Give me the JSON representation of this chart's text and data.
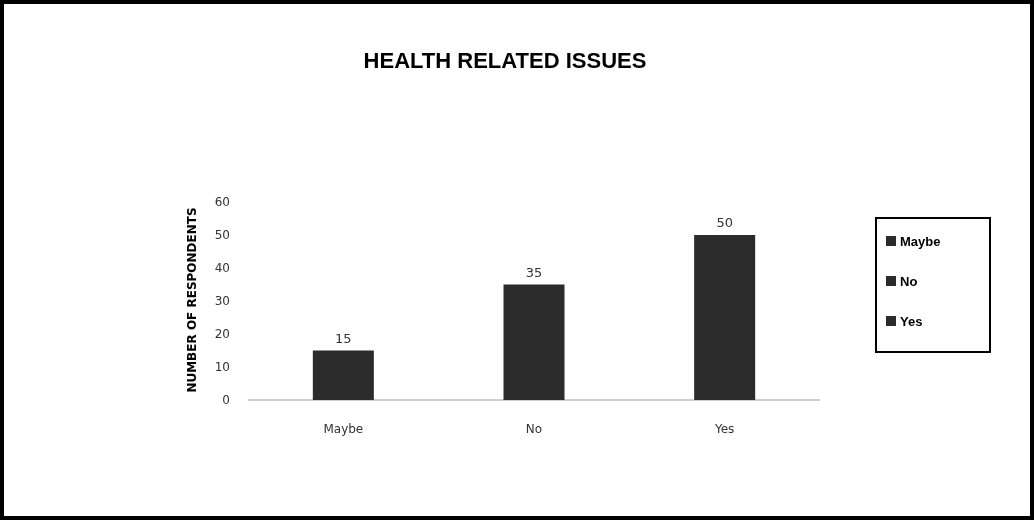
{
  "chart_data": {
    "type": "bar",
    "title": "HEALTH RELATED ISSUES",
    "ylabel": "NUMBER OF RESPONDENTS",
    "categories": [
      "Maybe",
      "No",
      "Yes"
    ],
    "series": [
      {
        "name": "Maybe",
        "color": "#2b2b2b",
        "values": [
          15,
          null,
          null
        ]
      },
      {
        "name": "No",
        "color": "#2b2b2b",
        "values": [
          null,
          35,
          null
        ]
      },
      {
        "name": "Yes",
        "color": "#2b2b2b",
        "values": [
          null,
          null,
          50
        ]
      }
    ],
    "ylim": [
      0,
      60
    ],
    "yticks": [
      0,
      10,
      20,
      30,
      40,
      50,
      60
    ],
    "data_labels": true,
    "legend": "right"
  }
}
